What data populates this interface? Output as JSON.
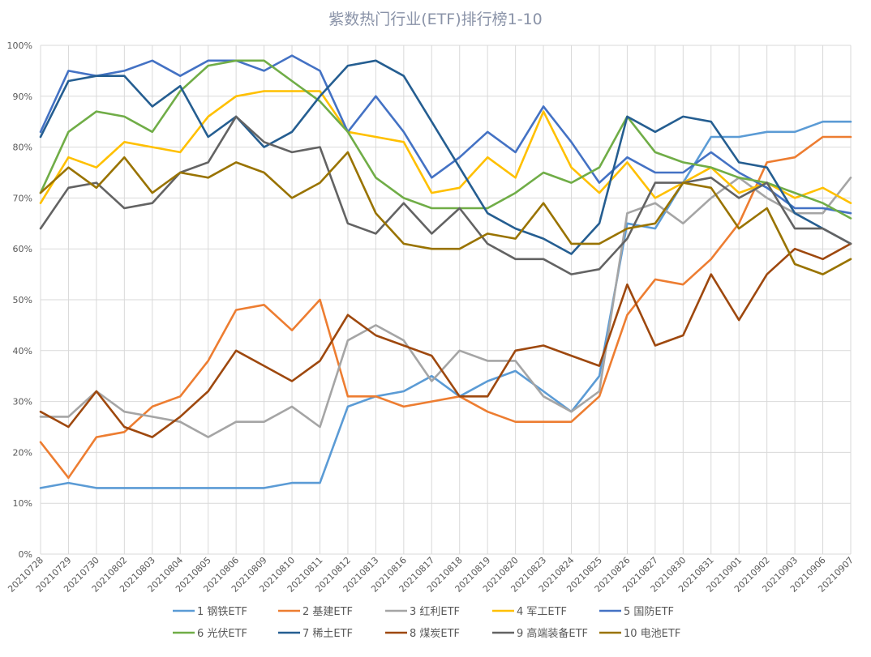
{
  "chart_data": {
    "type": "line",
    "title": "紫数热门行业(ETF)排行榜1-10",
    "xlabel": "",
    "ylabel": "",
    "ylim": [
      0,
      100
    ],
    "y_ticks": [
      "0%",
      "10%",
      "20%",
      "30%",
      "40%",
      "50%",
      "60%",
      "70%",
      "80%",
      "90%",
      "100%"
    ],
    "grid": true,
    "legend_position": "bottom",
    "categories": [
      "20210728",
      "20210729",
      "20210730",
      "20210802",
      "20210803",
      "20210804",
      "20210805",
      "20210806",
      "20210809",
      "20210810",
      "20210811",
      "20210812",
      "20210813",
      "20210816",
      "20210817",
      "20210818",
      "20210819",
      "20210820",
      "20210823",
      "20210824",
      "20210825",
      "20210826",
      "20210827",
      "20210830",
      "20210831",
      "20210901",
      "20210902",
      "20210903",
      "20210906",
      "20210907"
    ],
    "series": [
      {
        "name": "1 钢铁ETF",
        "color": "#5b9bd5",
        "values": [
          13,
          14,
          13,
          13,
          13,
          13,
          13,
          13,
          13,
          14,
          14,
          29,
          31,
          32,
          35,
          31,
          34,
          36,
          32,
          28,
          35,
          65,
          64,
          73,
          82,
          82,
          83,
          83,
          85,
          85
        ]
      },
      {
        "name": "2 基建ETF",
        "color": "#ed7d31",
        "values": [
          22,
          15,
          23,
          24,
          29,
          31,
          38,
          48,
          49,
          44,
          50,
          31,
          31,
          29,
          30,
          31,
          28,
          26,
          26,
          26,
          31,
          47,
          54,
          53,
          58,
          65,
          77,
          78,
          82,
          82
        ]
      },
      {
        "name": "3 红利ETF",
        "color": "#a5a5a5",
        "values": [
          27,
          27,
          32,
          28,
          27,
          26,
          23,
          26,
          26,
          29,
          25,
          42,
          45,
          42,
          34,
          40,
          38,
          38,
          31,
          28,
          32,
          67,
          69,
          65,
          70,
          74,
          70,
          67,
          67,
          74
        ]
      },
      {
        "name": "4 军工ETF",
        "color": "#ffc000",
        "values": [
          69,
          78,
          76,
          81,
          80,
          79,
          86,
          90,
          91,
          91,
          91,
          83,
          82,
          81,
          71,
          72,
          78,
          74,
          87,
          76,
          71,
          77,
          70,
          73,
          76,
          71,
          73,
          70,
          72,
          69
        ]
      },
      {
        "name": "5 国防ETF",
        "color": "#4472c4",
        "values": [
          83,
          95,
          94,
          95,
          97,
          94,
          97,
          97,
          95,
          98,
          95,
          83,
          90,
          83,
          74,
          78,
          83,
          79,
          88,
          81,
          73,
          78,
          75,
          75,
          79,
          75,
          72,
          68,
          68,
          67
        ]
      },
      {
        "name": "6 光伏ETF",
        "color": "#70ad47",
        "values": [
          71,
          83,
          87,
          86,
          83,
          91,
          96,
          97,
          97,
          93,
          89,
          83,
          74,
          70,
          68,
          68,
          68,
          71,
          75,
          73,
          76,
          86,
          79,
          77,
          76,
          74,
          73,
          71,
          69,
          66
        ]
      },
      {
        "name": "7 稀土ETF",
        "color": "#255e91",
        "values": [
          82,
          93,
          94,
          94,
          88,
          92,
          82,
          86,
          80,
          83,
          90,
          96,
          97,
          94,
          85,
          76,
          67,
          64,
          62,
          59,
          65,
          86,
          83,
          86,
          85,
          77,
          76,
          67,
          64,
          61
        ]
      },
      {
        "name": "8 煤炭ETF",
        "color": "#9e480e",
        "values": [
          28,
          25,
          32,
          25,
          23,
          27,
          32,
          40,
          37,
          34,
          38,
          47,
          43,
          41,
          39,
          31,
          31,
          40,
          41,
          39,
          37,
          53,
          41,
          43,
          55,
          46,
          55,
          60,
          58,
          61
        ]
      },
      {
        "name": "9 高端装备ETF",
        "color": "#636363",
        "values": [
          64,
          72,
          73,
          68,
          69,
          75,
          77,
          86,
          81,
          79,
          80,
          65,
          63,
          69,
          63,
          68,
          61,
          58,
          58,
          55,
          56,
          62,
          73,
          73,
          74,
          70,
          73,
          64,
          64,
          61
        ]
      },
      {
        "name": "10 电池ETF",
        "color": "#997300",
        "values": [
          71,
          76,
          72,
          78,
          71,
          75,
          74,
          77,
          75,
          70,
          73,
          79,
          67,
          61,
          60,
          60,
          63,
          62,
          69,
          61,
          61,
          64,
          65,
          73,
          72,
          64,
          68,
          57,
          55,
          58
        ]
      }
    ]
  }
}
